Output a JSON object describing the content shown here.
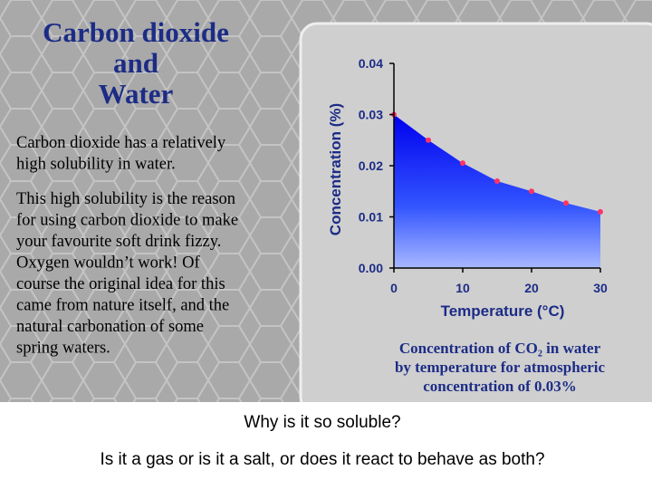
{
  "slide": {
    "title": [
      "Carbon dioxide",
      "and",
      "Water"
    ],
    "paragraphs": [
      [
        "Carbon dioxide has a relatively",
        "high solubility in water."
      ],
      [
        "This high solubility is the reason",
        "for using carbon dioxide to make",
        "your favourite soft drink fizzy.",
        "Oxygen wouldn’t work! Of",
        "course the original idea for this",
        "came from nature itself, and the",
        "natural carbonation of some",
        "spring waters."
      ]
    ],
    "caption": [
      "Concentration of CO₂ in water",
      "by temperature for atmospheric",
      "concentration of 0.03%"
    ],
    "questions": [
      "Why is it so soluble?",
      "Is it a gas or is it a salt, or does it react to behave as both?"
    ]
  },
  "chart_data": {
    "type": "area",
    "x": [
      0,
      5,
      10,
      15,
      20,
      25,
      30
    ],
    "values": [
      0.03,
      0.025,
      0.0205,
      0.017,
      0.015,
      0.0127,
      0.011
    ],
    "color": "#0000ff",
    "point_color": "#ff3366",
    "xlabel": "Temperature (°C)",
    "ylabel": "Concentration (%)",
    "xlim": [
      0,
      30
    ],
    "xticks": [
      0,
      10,
      20,
      30
    ],
    "ylim": [
      0,
      0.04
    ],
    "yticks": [
      {
        "value": 0,
        "label": "0.00"
      },
      0.01,
      0.02,
      0.03,
      0.04
    ]
  }
}
